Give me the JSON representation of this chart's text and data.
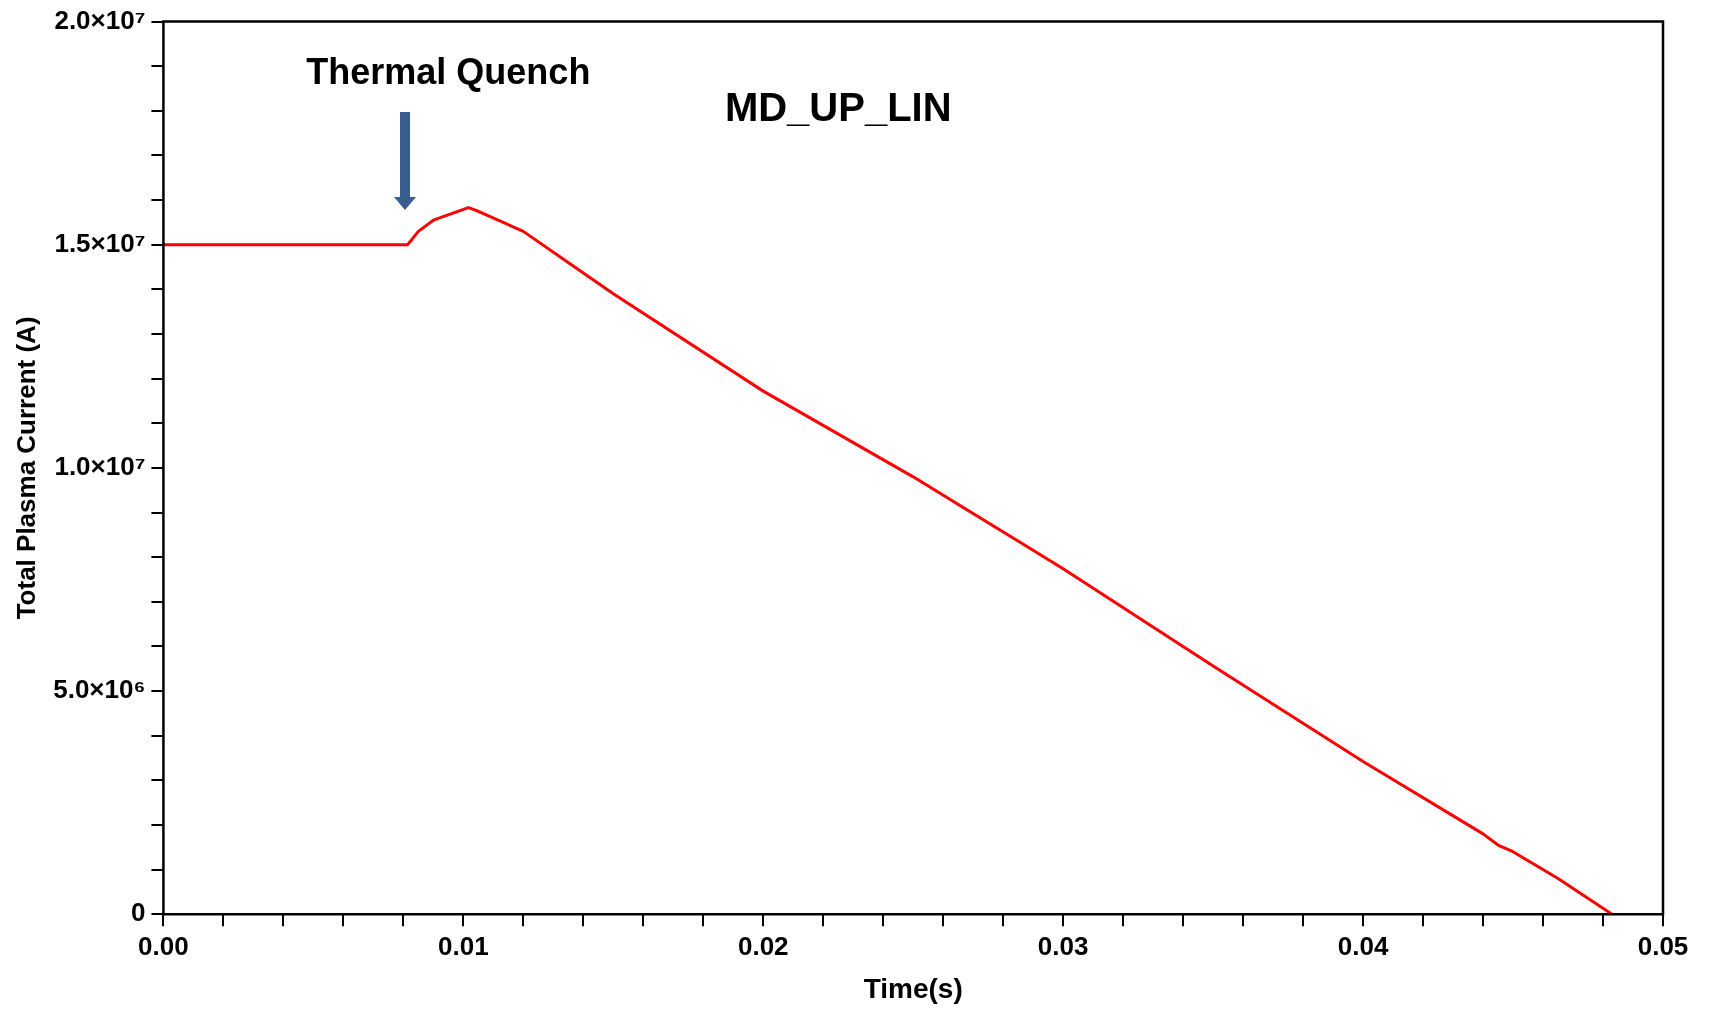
{
  "chart_data": {
    "type": "line",
    "title": "MD_UP_LIN",
    "xlabel": "Time(s)",
    "ylabel": "Total Plasma Current (A)",
    "x": [
      0,
      0.00814,
      0.0085,
      0.009,
      0.01017,
      0.0105,
      0.012,
      0.015,
      0.02,
      0.025,
      0.03,
      0.035,
      0.04,
      0.044,
      0.0445,
      0.045,
      0.0465,
      0.0483
    ],
    "series": [
      {
        "color": "#ff0000",
        "values": [
          15000000,
          15000000,
          15300000,
          15550000,
          15830000,
          15750000,
          15300000,
          13900000,
          11720000,
          9800000,
          7740000,
          5560000,
          3420000,
          1800000,
          1550000,
          1400000,
          800000,
          0
        ]
      }
    ],
    "xlim": [
      0,
      0.05
    ],
    "ylim": [
      0,
      20000000
    ],
    "xticks": [
      {
        "value": 0,
        "label": "0.00"
      },
      {
        "value": 0.002,
        "label": null
      },
      {
        "value": 0.004,
        "label": null
      },
      {
        "value": 0.006,
        "label": null
      },
      {
        "value": 0.008,
        "label": null
      },
      {
        "value": 0.01,
        "label": "0.01"
      },
      {
        "value": 0.012,
        "label": null
      },
      {
        "value": 0.014,
        "label": null
      },
      {
        "value": 0.016,
        "label": null
      },
      {
        "value": 0.018,
        "label": null
      },
      {
        "value": 0.02,
        "label": "0.02"
      },
      {
        "value": 0.022,
        "label": null
      },
      {
        "value": 0.024,
        "label": null
      },
      {
        "value": 0.026,
        "label": null
      },
      {
        "value": 0.028,
        "label": null
      },
      {
        "value": 0.03,
        "label": "0.03"
      },
      {
        "value": 0.032,
        "label": null
      },
      {
        "value": 0.034,
        "label": null
      },
      {
        "value": 0.036,
        "label": null
      },
      {
        "value": 0.038,
        "label": null
      },
      {
        "value": 0.04,
        "label": "0.04"
      },
      {
        "value": 0.042,
        "label": null
      },
      {
        "value": 0.044,
        "label": null
      },
      {
        "value": 0.046,
        "label": null
      },
      {
        "value": 0.048,
        "label": null
      },
      {
        "value": 0.05,
        "label": "0.05"
      }
    ],
    "yticks": [
      {
        "value": 0,
        "label": "0"
      },
      {
        "value": 1000000,
        "label": null
      },
      {
        "value": 2000000,
        "label": null
      },
      {
        "value": 3000000,
        "label": null
      },
      {
        "value": 4000000,
        "label": null
      },
      {
        "value": 5000000,
        "label": "5.0×10⁶"
      },
      {
        "value": 6000000,
        "label": null
      },
      {
        "value": 7000000,
        "label": null
      },
      {
        "value": 8000000,
        "label": null
      },
      {
        "value": 9000000,
        "label": null
      },
      {
        "value": 10000000,
        "label": "1.0×10⁷"
      },
      {
        "value": 11000000,
        "label": null
      },
      {
        "value": 12000000,
        "label": null
      },
      {
        "value": 13000000,
        "label": null
      },
      {
        "value": 14000000,
        "label": null
      },
      {
        "value": 15000000,
        "label": "1.5×10⁷"
      },
      {
        "value": 16000000,
        "label": null
      },
      {
        "value": 17000000,
        "label": null
      },
      {
        "value": 18000000,
        "label": null
      },
      {
        "value": 19000000,
        "label": null
      },
      {
        "value": 20000000,
        "label": "2.0×10⁷"
      }
    ],
    "annotations": [
      "Thermal Quench"
    ],
    "grid": false,
    "legend": false,
    "marker": "none",
    "line_style": "solid"
  }
}
